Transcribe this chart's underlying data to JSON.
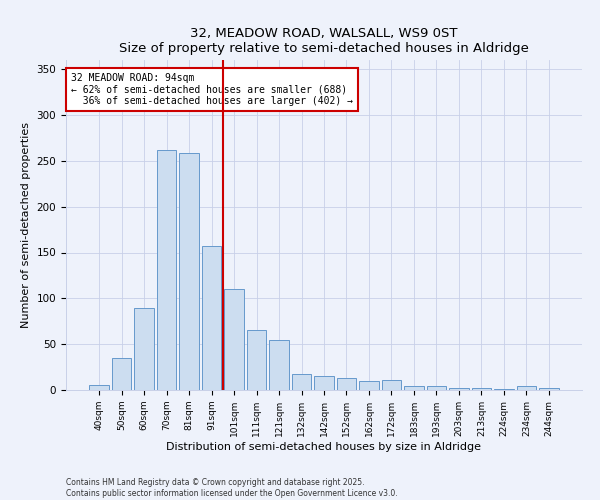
{
  "title": "32, MEADOW ROAD, WALSALL, WS9 0ST",
  "subtitle": "Size of property relative to semi-detached houses in Aldridge",
  "xlabel": "Distribution of semi-detached houses by size in Aldridge",
  "ylabel": "Number of semi-detached properties",
  "bar_color": "#ccddf0",
  "bar_edge_color": "#6699cc",
  "categories": [
    "40sqm",
    "50sqm",
    "60sqm",
    "70sqm",
    "81sqm",
    "91sqm",
    "101sqm",
    "111sqm",
    "121sqm",
    "132sqm",
    "142sqm",
    "152sqm",
    "162sqm",
    "172sqm",
    "183sqm",
    "193sqm",
    "203sqm",
    "213sqm",
    "224sqm",
    "234sqm",
    "244sqm"
  ],
  "values": [
    6,
    35,
    90,
    262,
    258,
    157,
    110,
    65,
    55,
    17,
    15,
    13,
    10,
    11,
    4,
    4,
    2,
    2,
    1,
    4,
    2
  ],
  "ylim": [
    0,
    360
  ],
  "yticks": [
    0,
    50,
    100,
    150,
    200,
    250,
    300,
    350
  ],
  "property_label": "32 MEADOW ROAD: 94sqm",
  "pct_smaller": 62,
  "count_smaller": 688,
  "pct_larger": 36,
  "count_larger": 402,
  "vline_color": "#cc0000",
  "annotation_box_color": "#ffffff",
  "annotation_box_edge": "#cc0000",
  "footer1": "Contains HM Land Registry data © Crown copyright and database right 2025.",
  "footer2": "Contains public sector information licensed under the Open Government Licence v3.0.",
  "bg_color": "#eef2fb",
  "grid_color": "#c8d0e8"
}
